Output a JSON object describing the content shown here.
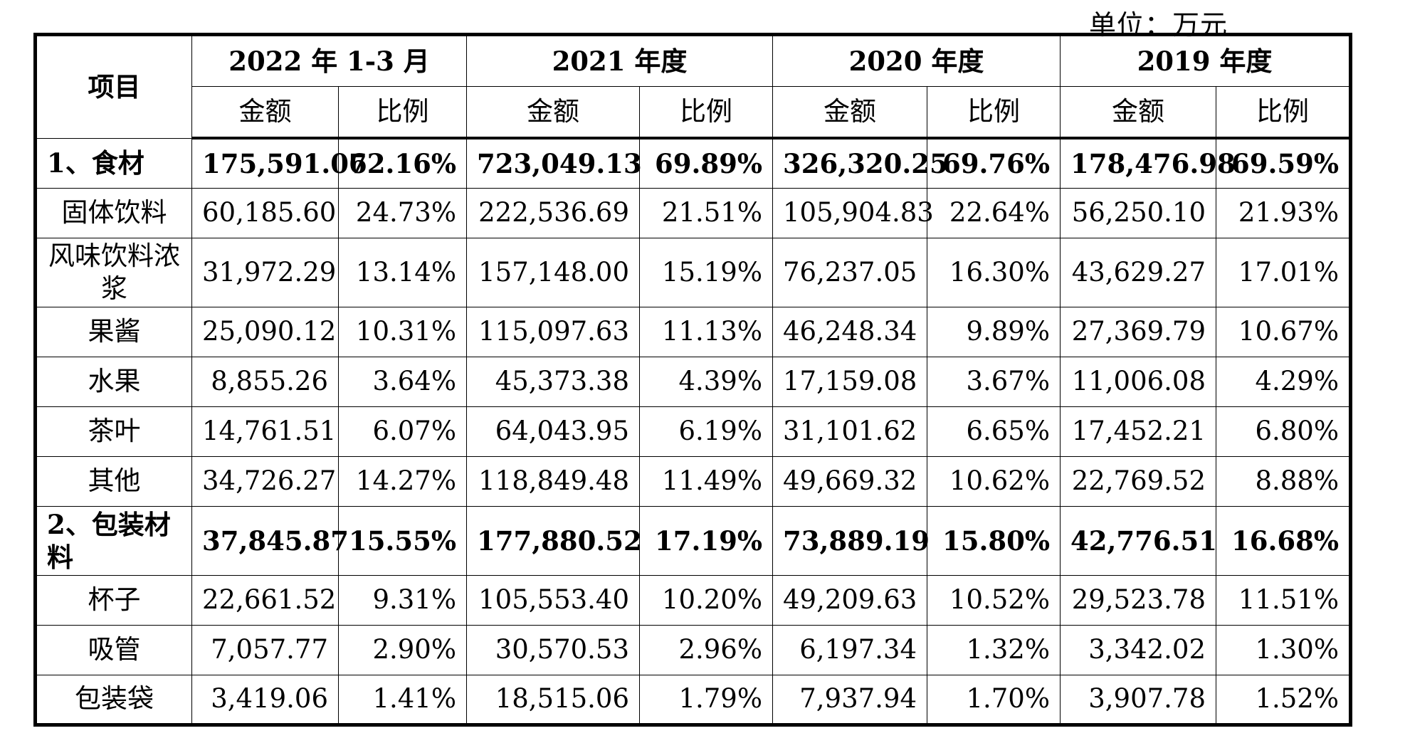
{
  "unit_label": "单位：万元",
  "header": {
    "item_label": "项目",
    "periods": [
      "2022 年 1-3 月",
      "2021 年度",
      "2020 年度",
      "2019 年度"
    ],
    "amount_label": "金额",
    "ratio_label": "比例"
  },
  "rows": [
    {
      "item": "1、食材",
      "kind": "category",
      "v": [
        "175,591.06",
        "72.16%",
        "723,049.13",
        "69.89%",
        "326,320.25",
        "69.76%",
        "178,476.98",
        "69.59%"
      ]
    },
    {
      "item": "固体饮料",
      "kind": "sub",
      "v": [
        "60,185.60",
        "24.73%",
        "222,536.69",
        "21.51%",
        "105,904.83",
        "22.64%",
        "56,250.10",
        "21.93%"
      ]
    },
    {
      "item": "风味饮料浓浆",
      "kind": "sub",
      "tall": true,
      "v": [
        "31,972.29",
        "13.14%",
        "157,148.00",
        "15.19%",
        "76,237.05",
        "16.30%",
        "43,629.27",
        "17.01%"
      ]
    },
    {
      "item": "果酱",
      "kind": "sub",
      "v": [
        "25,090.12",
        "10.31%",
        "115,097.63",
        "11.13%",
        "46,248.34",
        "9.89%",
        "27,369.79",
        "10.67%"
      ]
    },
    {
      "item": "水果",
      "kind": "sub",
      "v": [
        "8,855.26",
        "3.64%",
        "45,373.38",
        "4.39%",
        "17,159.08",
        "3.67%",
        "11,006.08",
        "4.29%"
      ]
    },
    {
      "item": "茶叶",
      "kind": "sub",
      "v": [
        "14,761.51",
        "6.07%",
        "64,043.95",
        "6.19%",
        "31,101.62",
        "6.65%",
        "17,452.21",
        "6.80%"
      ]
    },
    {
      "item": "其他",
      "kind": "sub",
      "v": [
        "34,726.27",
        "14.27%",
        "118,849.48",
        "11.49%",
        "49,669.32",
        "10.62%",
        "22,769.52",
        "8.88%"
      ]
    },
    {
      "item": "2、包装材料",
      "kind": "category",
      "tall": true,
      "v": [
        "37,845.87",
        "15.55%",
        "177,880.52",
        "17.19%",
        "73,889.19",
        "15.80%",
        "42,776.51",
        "16.68%"
      ]
    },
    {
      "item": "杯子",
      "kind": "sub",
      "v": [
        "22,661.52",
        "9.31%",
        "105,553.40",
        "10.20%",
        "49,209.63",
        "10.52%",
        "29,523.78",
        "11.51%"
      ]
    },
    {
      "item": "吸管",
      "kind": "sub",
      "v": [
        "7,057.77",
        "2.90%",
        "30,570.53",
        "2.96%",
        "6,197.34",
        "1.32%",
        "3,342.02",
        "1.30%"
      ]
    },
    {
      "item": "包装袋",
      "kind": "sub",
      "v": [
        "3,419.06",
        "1.41%",
        "18,515.06",
        "1.79%",
        "7,937.94",
        "1.70%",
        "3,907.78",
        "1.52%"
      ]
    }
  ]
}
